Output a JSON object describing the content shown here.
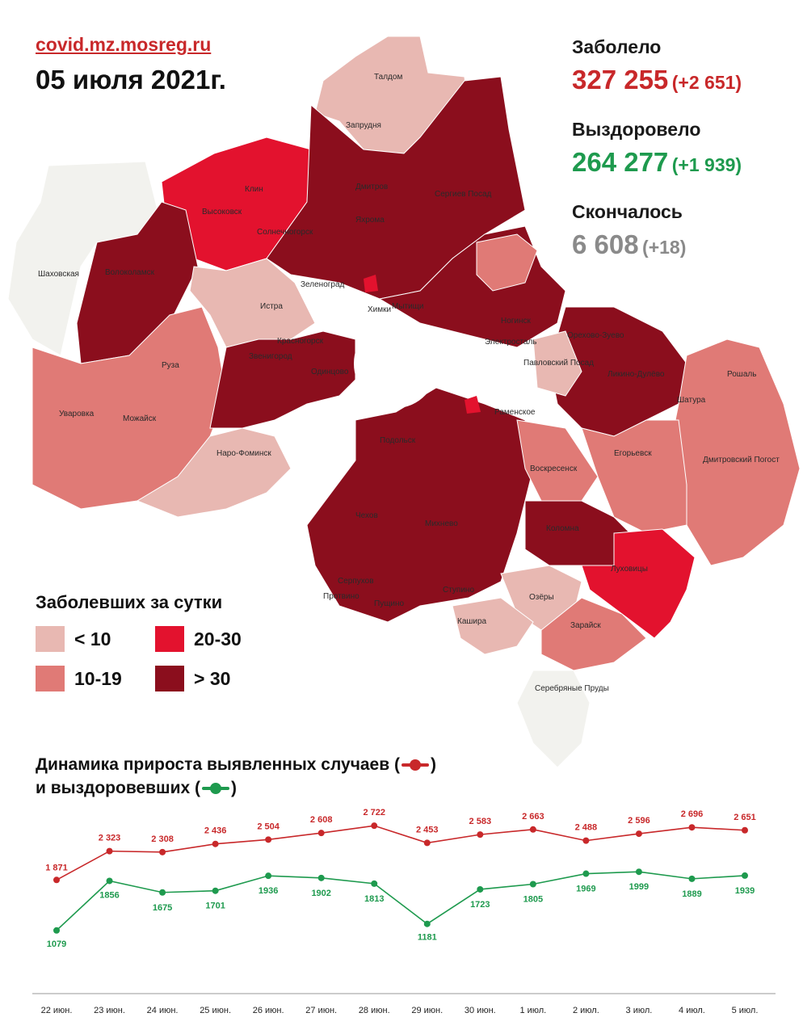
{
  "header": {
    "site": "covid.mz.mosreg.ru",
    "date": "05 июля 2021г."
  },
  "stats": {
    "infected": {
      "label": "Заболело",
      "value": "327 255",
      "delta": "(+2 651)"
    },
    "recovered": {
      "label": "Выздоровело",
      "value": "264 277",
      "delta": "(+1 939)"
    },
    "deaths": {
      "label": "Скончалось",
      "value": "6 608",
      "delta": "(+18)"
    }
  },
  "colors": {
    "accent_red": "#c8282a",
    "accent_green": "#1e9a4e",
    "gray": "#8a8a8a",
    "lt10": "#e8b8b2",
    "r10_19": "#e07a76",
    "r20_30": "#e3122e",
    "gt30": "#8b0e1d",
    "lowest": "#f2f2ee"
  },
  "legend": {
    "title": "Заболевших за сутки",
    "items": [
      {
        "label": "< 10",
        "color": "#e8b8b2"
      },
      {
        "label": "20-30",
        "color": "#e3122e"
      },
      {
        "label": "10-19",
        "color": "#e07a76"
      },
      {
        "label": "> 30",
        "color": "#8b0e1d"
      }
    ]
  },
  "map": {
    "cities": [
      "Талдом",
      "Запрудня",
      "Клин",
      "Высоковск",
      "Дмитров",
      "Сергиев Посад",
      "Яхрома",
      "Солнечногорск",
      "Шаховская",
      "Волоколамск",
      "Зеленоград",
      "Истра",
      "Мытищи",
      "Химки",
      "Ногинск",
      "Электросталь",
      "Орехово-Зуево",
      "Павловский Посад",
      "Красногорск",
      "Звенигород",
      "Руза",
      "Одинцово",
      "Ликино-Дулёво",
      "Рошаль",
      "Уваровка",
      "Можайск",
      "Шатура",
      "Раменское",
      "Наро-Фоминск",
      "Подольск",
      "Воскресенск",
      "Егорьевск",
      "Дмитровский Погост",
      "Чехов",
      "Михнево",
      "Коломна",
      "Луховицы",
      "Серпухов",
      "Ступино",
      "Пущино",
      "Протвино",
      "Озёры",
      "Кашира",
      "Зарайск",
      "Серебряные Пруды"
    ]
  },
  "chart": {
    "title_line1": "Динамика прироста выявленных случаев (",
    "title_line1_end": ")",
    "title_line2": "и выздоровевших (",
    "title_line2_end": ")"
  },
  "chart_data": {
    "type": "line",
    "categories": [
      "22 июн.",
      "23 июн.",
      "24 июн.",
      "25 июн.",
      "26 июн.",
      "27 июн.",
      "28 июн.",
      "29 июн.",
      "30 июн.",
      "1 июл.",
      "2 июл.",
      "3 июл.",
      "4 июл.",
      "5 июл."
    ],
    "series": [
      {
        "color": "#c8282a",
        "values": [
          1871,
          2323,
          2308,
          2436,
          2504,
          2608,
          2722,
          2453,
          2583,
          2663,
          2488,
          2596,
          2696,
          2651
        ],
        "labels": [
          "1 871",
          "2 323",
          "2 308",
          "2 436",
          "2 504",
          "2 608",
          "2 722",
          "2 453",
          "2 583",
          "2 663",
          "2 488",
          "2 596",
          "2 696",
          "2 651"
        ]
      },
      {
        "color": "#1e9a4e",
        "values": [
          1079,
          1856,
          1675,
          1701,
          1936,
          1902,
          1813,
          1181,
          1723,
          1805,
          1969,
          1999,
          1889,
          1939
        ],
        "labels": [
          "1079",
          "1856",
          "1675",
          "1701",
          "1936",
          "1902",
          "1813",
          "1181",
          "1723",
          "1805",
          "1969",
          "1999",
          "1889",
          "1939"
        ]
      }
    ],
    "legend": "none",
    "grid": false
  }
}
